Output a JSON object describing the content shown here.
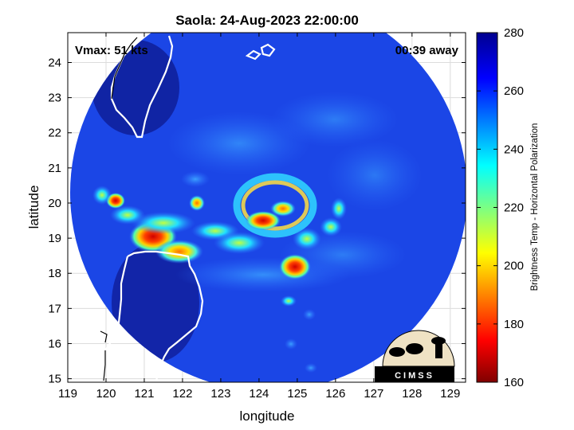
{
  "title": "Saola: 24-Aug-2023 22:00:00",
  "vmax_label": "Vmax: 51 kts",
  "time_away_label": "00:39 away",
  "x_axis": {
    "label": "longitude",
    "range": [
      119,
      129.4
    ],
    "ticks": [
      119,
      120,
      121,
      122,
      123,
      124,
      125,
      126,
      127,
      128,
      129
    ]
  },
  "y_axis": {
    "label": "latitude",
    "range": [
      14.9,
      24.85
    ],
    "ticks": [
      15,
      16,
      17,
      18,
      19,
      20,
      21,
      22,
      23,
      24
    ]
  },
  "colorbar": {
    "label": "Brightness Temp - Horizontal Polarization",
    "range": [
      160,
      280
    ],
    "ticks": [
      160,
      180,
      200,
      220,
      240,
      260,
      280
    ],
    "colormap": "jet"
  },
  "logo_text": "CIMSS",
  "colors": {
    "land_outline": "#ffffff",
    "ocean_background": "#ffffff",
    "swath_background": "#1b46e6",
    "cold_core": "#e01818",
    "frame": "#000000"
  },
  "chart_data": {
    "type": "heatmap",
    "title": "Saola: 24-Aug-2023 22:00:00",
    "xlabel": "longitude",
    "ylabel": "latitude",
    "xlim": [
      119,
      129.4
    ],
    "ylim": [
      14.9,
      24.85
    ],
    "value_label": "Brightness Temp - Horizontal Polarization",
    "value_range": [
      160,
      280
    ],
    "swath": {
      "center_lon": 124.1,
      "center_lat": 19.7,
      "radius_deg": 5.2
    },
    "features": [
      {
        "name": "cold-core-center",
        "lon": 124.1,
        "lat": 19.55,
        "min_temp": 175
      },
      {
        "name": "cold-core-west",
        "lon": 121.1,
        "lat": 19.15,
        "min_temp": 178
      },
      {
        "name": "cold-core-south",
        "lon": 125.1,
        "lat": 18.2,
        "min_temp": 185
      },
      {
        "name": "cell-far-west",
        "lon": 120.2,
        "lat": 20.15,
        "min_temp": 195
      }
    ]
  }
}
